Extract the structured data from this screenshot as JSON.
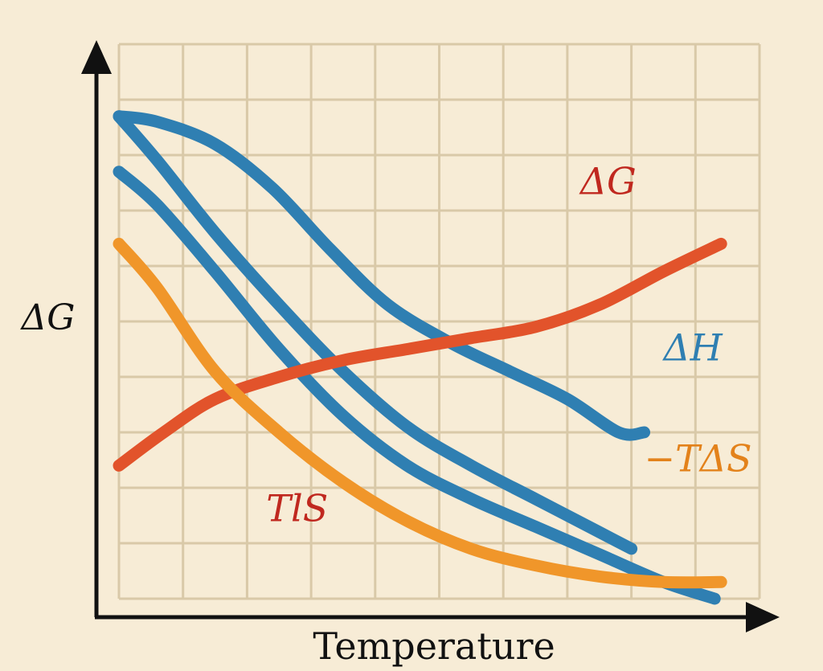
{
  "colors": {
    "background": "#f7ecd6",
    "grid": "#d9c9a8",
    "axis": "#111111",
    "blue": "#2f7fb2",
    "red": "#e2532b",
    "orange": "#f0962a",
    "label_red": "#c0281f",
    "label_blue": "#2f7fb2",
    "label_orange": "#e3821b"
  },
  "chart_data": {
    "type": "line",
    "xlabel": "Temperature",
    "ylabel": "ΔG",
    "xlim": [
      0,
      10
    ],
    "ylim": [
      0,
      10
    ],
    "grid": true,
    "annotations": [
      {
        "text": "ΔG",
        "x": 7.2,
        "y": 7.3,
        "color": "#c0281f"
      },
      {
        "text": "ΔH",
        "x": 8.5,
        "y": 4.3,
        "color": "#2f7fb2"
      },
      {
        "text": "−TΔS",
        "x": 8.2,
        "y": 2.3,
        "color": "#e3821b"
      },
      {
        "text": "TlS",
        "x": 2.3,
        "y": 1.4,
        "color": "#c0281f"
      }
    ],
    "series": [
      {
        "color": "blue",
        "x": [
          0,
          0.6,
          1.5,
          2.4,
          3.3,
          4.2,
          5.2,
          6.1,
          7.0,
          7.8,
          8.2
        ],
        "y": [
          8.7,
          8.6,
          8.2,
          7.4,
          6.3,
          5.3,
          4.6,
          4.1,
          3.6,
          3.0,
          3.0
        ]
      },
      {
        "color": "blue",
        "x": [
          0,
          0.6,
          1.5,
          2.5,
          3.5,
          4.5,
          5.5,
          6.5,
          7.5,
          8.0
        ],
        "y": [
          8.7,
          7.9,
          6.6,
          5.3,
          4.1,
          3.1,
          2.4,
          1.8,
          1.2,
          0.9
        ]
      },
      {
        "color": "blue",
        "x": [
          0,
          0.6,
          1.5,
          2.5,
          3.5,
          4.5,
          5.5,
          6.5,
          7.5,
          8.5,
          9.3
        ],
        "y": [
          7.7,
          7.1,
          5.9,
          4.5,
          3.3,
          2.4,
          1.8,
          1.3,
          0.8,
          0.3,
          0.0
        ]
      },
      {
        "color": "red",
        "x": [
          0,
          0.7,
          1.5,
          2.5,
          3.5,
          4.5,
          5.5,
          6.5,
          7.5,
          8.5,
          9.4
        ],
        "y": [
          2.4,
          3.0,
          3.6,
          4.0,
          4.3,
          4.5,
          4.7,
          4.9,
          5.3,
          5.9,
          6.4
        ]
      },
      {
        "color": "orange",
        "x": [
          0,
          0.6,
          1.5,
          2.5,
          3.5,
          4.5,
          5.5,
          6.5,
          7.5,
          8.5,
          9.4
        ],
        "y": [
          6.4,
          5.6,
          4.1,
          3.0,
          2.1,
          1.4,
          0.9,
          0.6,
          0.4,
          0.3,
          0.3
        ]
      }
    ]
  }
}
